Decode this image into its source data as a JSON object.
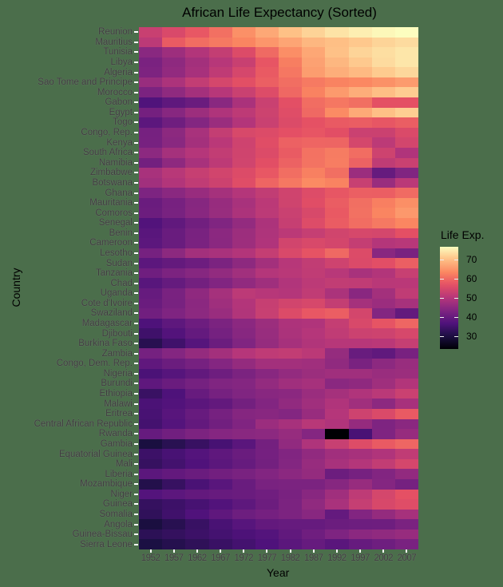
{
  "chart_data": {
    "type": "heatmap",
    "title": "African Life Expectancy (Sorted)",
    "xlabel": "Year",
    "ylabel": "Country",
    "colorbar_label": "Life Exp.",
    "colorbar_ticks": [
      30,
      40,
      50,
      60,
      70
    ],
    "colorbar_range": [
      23.6,
      76.4
    ],
    "colormap": "magma",
    "x": [
      "1952",
      "1957",
      "1962",
      "1967",
      "1972",
      "1977",
      "1982",
      "1987",
      "1992",
      "1997",
      "2002",
      "2007"
    ],
    "rows": [
      {
        "country": "Reunion",
        "values": [
          52.72,
          55.09,
          57.67,
          60.54,
          64.27,
          67.06,
          69.89,
          71.91,
          73.62,
          74.77,
          75.74,
          76.44
        ]
      },
      {
        "country": "Mauritius",
        "values": [
          50.99,
          58.09,
          60.25,
          61.56,
          62.94,
          64.93,
          66.71,
          68.74,
          69.75,
          70.74,
          71.95,
          72.8
        ]
      },
      {
        "country": "Tunisia",
        "values": [
          44.6,
          47.1,
          49.58,
          52.05,
          55.6,
          59.84,
          64.05,
          66.89,
          70.0,
          71.97,
          73.04,
          73.92
        ]
      },
      {
        "country": "Libya",
        "values": [
          42.72,
          45.29,
          47.81,
          50.23,
          52.77,
          57.44,
          62.16,
          66.23,
          68.76,
          70.83,
          72.74,
          73.95
        ]
      },
      {
        "country": "Algeria",
        "values": [
          43.08,
          45.69,
          48.3,
          51.41,
          54.52,
          58.01,
          61.37,
          65.8,
          67.74,
          69.15,
          70.99,
          72.3
        ]
      },
      {
        "country": "Sao Tome and Principe",
        "values": [
          46.47,
          48.95,
          51.89,
          54.43,
          56.48,
          58.55,
          60.35,
          61.73,
          62.74,
          63.31,
          64.34,
          65.53
        ]
      },
      {
        "country": "Morocco",
        "values": [
          42.87,
          45.42,
          47.92,
          50.34,
          52.86,
          55.73,
          59.65,
          62.68,
          65.39,
          67.66,
          69.62,
          71.16
        ]
      },
      {
        "country": "Gabon",
        "values": [
          37.0,
          38.99,
          40.49,
          44.6,
          48.69,
          52.79,
          56.56,
          60.19,
          61.37,
          60.46,
          56.76,
          56.74
        ]
      },
      {
        "country": "Egypt",
        "values": [
          41.89,
          44.44,
          46.99,
          49.29,
          51.14,
          53.32,
          56.01,
          59.8,
          63.67,
          67.22,
          69.81,
          71.34
        ]
      },
      {
        "country": "Togo",
        "values": [
          38.6,
          41.21,
          43.92,
          46.77,
          49.76,
          52.89,
          55.47,
          56.94,
          58.06,
          58.39,
          57.56,
          58.42
        ]
      },
      {
        "country": "Congo, Rep.",
        "values": [
          42.11,
          45.05,
          48.44,
          52.04,
          54.91,
          55.63,
          56.7,
          57.47,
          56.43,
          52.96,
          52.97,
          55.32
        ]
      },
      {
        "country": "Kenya",
        "values": [
          42.27,
          44.69,
          47.95,
          50.65,
          53.56,
          56.16,
          58.77,
          59.34,
          59.29,
          54.41,
          50.99,
          54.11
        ]
      },
      {
        "country": "South Africa",
        "values": [
          45.01,
          47.99,
          49.95,
          51.93,
          53.7,
          55.53,
          58.16,
          60.83,
          61.89,
          60.24,
          53.37,
          49.34
        ]
      },
      {
        "country": "Namibia",
        "values": [
          41.73,
          45.23,
          48.39,
          51.16,
          53.87,
          56.44,
          58.97,
          60.84,
          62.0,
          58.91,
          51.48,
          52.91
        ]
      },
      {
        "country": "Zimbabwe",
        "values": [
          48.45,
          50.47,
          52.36,
          53.99,
          55.64,
          57.67,
          60.36,
          62.35,
          60.38,
          46.81,
          39.99,
          43.49
        ]
      },
      {
        "country": "Botswana",
        "values": [
          47.62,
          49.62,
          51.52,
          53.3,
          56.02,
          59.32,
          61.48,
          63.62,
          62.75,
          52.56,
          46.63,
          50.73
        ]
      },
      {
        "country": "Ghana",
        "values": [
          43.15,
          44.78,
          46.45,
          48.07,
          49.88,
          51.76,
          53.74,
          55.73,
          57.5,
          58.56,
          58.45,
          60.02
        ]
      },
      {
        "country": "Mauritania",
        "values": [
          40.54,
          42.34,
          44.25,
          46.29,
          48.44,
          50.85,
          53.6,
          56.15,
          58.33,
          60.43,
          62.25,
          64.16
        ]
      },
      {
        "country": "Comoros",
        "values": [
          40.72,
          42.46,
          44.47,
          46.47,
          48.94,
          50.94,
          52.93,
          54.93,
          57.94,
          60.66,
          62.97,
          65.15
        ]
      },
      {
        "country": "Senegal",
        "values": [
          37.28,
          39.33,
          41.45,
          43.56,
          45.81,
          48.88,
          52.38,
          55.77,
          58.2,
          60.19,
          61.6,
          63.06
        ]
      },
      {
        "country": "Benin",
        "values": [
          38.22,
          40.36,
          42.62,
          44.89,
          47.01,
          49.19,
          50.9,
          52.34,
          53.92,
          54.78,
          54.41,
          56.73
        ]
      },
      {
        "country": "Cameroon",
        "values": [
          38.52,
          40.43,
          42.64,
          44.8,
          47.05,
          49.36,
          53.98,
          54.99,
          54.31,
          52.2,
          49.86,
          50.43
        ]
      },
      {
        "country": "Lesotho",
        "values": [
          42.14,
          45.05,
          47.75,
          48.49,
          49.77,
          52.21,
          55.08,
          57.18,
          59.69,
          55.56,
          44.59,
          42.59
        ]
      },
      {
        "country": "Sudan",
        "values": [
          38.64,
          39.62,
          40.87,
          42.86,
          45.08,
          47.8,
          50.34,
          51.74,
          53.56,
          55.37,
          56.37,
          58.56
        ]
      },
      {
        "country": "Tanzania",
        "values": [
          41.22,
          42.97,
          44.25,
          45.76,
          47.62,
          49.92,
          50.61,
          51.53,
          50.44,
          48.47,
          49.65,
          52.52
        ]
      },
      {
        "country": "Chad",
        "values": [
          38.09,
          39.88,
          41.72,
          43.6,
          45.57,
          47.38,
          49.52,
          51.05,
          51.72,
          51.57,
          50.53,
          50.65
        ]
      },
      {
        "country": "Uganda",
        "values": [
          39.98,
          42.57,
          45.34,
          48.05,
          51.02,
          50.35,
          49.85,
          51.51,
          48.83,
          44.58,
          47.81,
          51.54
        ]
      },
      {
        "country": "Cote d'Ivoire",
        "values": [
          40.48,
          42.47,
          44.93,
          47.35,
          49.8,
          52.37,
          53.98,
          54.66,
          52.04,
          47.99,
          46.83,
          48.33
        ]
      },
      {
        "country": "Swaziland",
        "values": [
          41.41,
          43.42,
          44.99,
          46.63,
          49.55,
          52.54,
          55.56,
          57.68,
          58.47,
          54.29,
          43.87,
          39.61
        ]
      },
      {
        "country": "Madagascar",
        "values": [
          36.68,
          38.87,
          40.85,
          42.88,
          44.85,
          46.88,
          48.97,
          49.35,
          52.21,
          54.98,
          57.29,
          59.44
        ]
      },
      {
        "country": "Djibouti",
        "values": [
          34.81,
          37.33,
          39.69,
          42.07,
          44.37,
          46.52,
          48.81,
          50.04,
          51.6,
          53.16,
          53.37,
          54.79
        ]
      },
      {
        "country": "Burkina Faso",
        "values": [
          31.98,
          34.91,
          37.81,
          40.7,
          43.59,
          46.14,
          48.12,
          49.56,
          50.26,
          50.32,
          50.65,
          52.3
        ]
      },
      {
        "country": "Zambia",
        "values": [
          42.04,
          44.08,
          46.02,
          47.77,
          50.11,
          51.39,
          51.82,
          50.82,
          46.1,
          40.24,
          39.19,
          42.38
        ]
      },
      {
        "country": "Congo, Dem. Rep.",
        "values": [
          39.14,
          40.65,
          42.12,
          44.06,
          45.99,
          47.8,
          47.78,
          47.41,
          45.55,
          42.59,
          44.97,
          46.46
        ]
      },
      {
        "country": "Nigeria",
        "values": [
          36.32,
          37.8,
          39.36,
          41.04,
          42.82,
          44.51,
          45.83,
          46.89,
          47.47,
          47.46,
          46.61,
          46.86
        ]
      },
      {
        "country": "Burundi",
        "values": [
          39.03,
          40.53,
          42.05,
          43.55,
          44.06,
          45.91,
          47.47,
          48.21,
          44.74,
          45.33,
          47.36,
          49.58
        ]
      },
      {
        "country": "Ethiopia",
        "values": [
          34.08,
          36.67,
          40.06,
          42.12,
          43.52,
          44.51,
          44.92,
          46.68,
          48.09,
          49.4,
          50.73,
          52.95
        ]
      },
      {
        "country": "Malawi",
        "values": [
          36.26,
          37.21,
          38.41,
          39.49,
          41.77,
          43.77,
          45.64,
          47.46,
          49.42,
          47.5,
          45.01,
          48.3
        ]
      },
      {
        "country": "Eritrea",
        "values": [
          35.93,
          38.05,
          40.16,
          42.19,
          44.14,
          44.54,
          43.89,
          46.45,
          49.99,
          53.38,
          55.24,
          58.04
        ]
      },
      {
        "country": "Central African Republic",
        "values": [
          35.46,
          37.46,
          39.48,
          41.48,
          43.46,
          46.78,
          48.3,
          50.49,
          49.4,
          46.07,
          43.31,
          44.74
        ]
      },
      {
        "country": "Rwanda",
        "values": [
          40.0,
          41.5,
          43.0,
          44.1,
          44.6,
          45.0,
          46.22,
          44.02,
          23.6,
          36.09,
          43.41,
          46.24
        ]
      },
      {
        "country": "Gambia",
        "values": [
          30.0,
          32.07,
          33.9,
          35.86,
          38.31,
          41.84,
          45.58,
          49.27,
          52.64,
          55.86,
          58.04,
          59.45
        ]
      },
      {
        "country": "Equatorial Guinea",
        "values": [
          34.48,
          35.98,
          37.49,
          38.99,
          40.52,
          42.02,
          43.66,
          45.66,
          47.55,
          48.25,
          49.35,
          51.58
        ]
      },
      {
        "country": "Mali",
        "values": [
          33.69,
          35.31,
          36.94,
          38.49,
          39.98,
          41.71,
          43.92,
          46.36,
          48.39,
          49.9,
          51.82,
          54.47
        ]
      },
      {
        "country": "Liberia",
        "values": [
          38.48,
          39.49,
          40.5,
          41.54,
          42.61,
          43.76,
          44.85,
          46.03,
          40.8,
          42.22,
          43.75,
          45.68
        ]
      },
      {
        "country": "Mozambique",
        "values": [
          31.29,
          33.78,
          36.16,
          38.11,
          40.33,
          42.5,
          42.8,
          42.86,
          44.28,
          46.34,
          44.03,
          42.08
        ]
      },
      {
        "country": "Niger",
        "values": [
          37.44,
          38.6,
          39.49,
          40.12,
          40.55,
          41.29,
          42.6,
          44.56,
          47.39,
          51.31,
          54.5,
          56.87
        ]
      },
      {
        "country": "Guinea",
        "values": [
          33.61,
          34.56,
          35.75,
          37.2,
          38.84,
          40.76,
          42.89,
          45.55,
          48.58,
          52.31,
          54.84,
          56.01
        ]
      },
      {
        "country": "Somalia",
        "values": [
          32.98,
          34.98,
          36.98,
          38.98,
          40.97,
          41.97,
          42.96,
          44.5,
          39.66,
          43.8,
          45.94,
          48.16
        ]
      },
      {
        "country": "Angola",
        "values": [
          30.02,
          31.99,
          34.0,
          36.0,
          37.93,
          39.48,
          39.94,
          39.91,
          40.65,
          40.96,
          41.0,
          42.73
        ]
      },
      {
        "country": "Guinea-Bissau",
        "values": [
          32.5,
          33.49,
          34.49,
          35.49,
          36.49,
          37.47,
          39.33,
          41.25,
          43.27,
          44.87,
          45.5,
          46.39
        ]
      },
      {
        "country": "Sierra Leone",
        "values": [
          30.33,
          31.57,
          32.77,
          34.11,
          35.4,
          36.79,
          38.45,
          40.01,
          38.33,
          39.9,
          41.01,
          42.57
        ]
      }
    ]
  }
}
